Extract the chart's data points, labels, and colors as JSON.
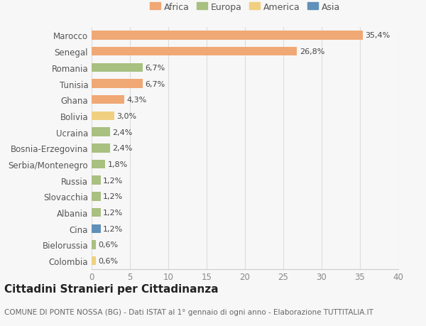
{
  "countries": [
    "Marocco",
    "Senegal",
    "Romania",
    "Tunisia",
    "Ghana",
    "Bolivia",
    "Ucraina",
    "Bosnia-Erzegovina",
    "Serbia/Montenegro",
    "Russia",
    "Slovacchia",
    "Albania",
    "Cina",
    "Bielorussia",
    "Colombia"
  ],
  "values": [
    35.4,
    26.8,
    6.7,
    6.7,
    4.3,
    3.0,
    2.4,
    2.4,
    1.8,
    1.2,
    1.2,
    1.2,
    1.2,
    0.6,
    0.6
  ],
  "labels": [
    "35,4%",
    "26,8%",
    "6,7%",
    "6,7%",
    "4,3%",
    "3,0%",
    "2,4%",
    "2,4%",
    "1,8%",
    "1,2%",
    "1,2%",
    "1,2%",
    "1,2%",
    "0,6%",
    "0,6%"
  ],
  "colors": [
    "#f0a875",
    "#f0a875",
    "#a8c080",
    "#f0a875",
    "#f0a875",
    "#f0d080",
    "#a8c080",
    "#a8c080",
    "#a8c080",
    "#a8c080",
    "#a8c080",
    "#a8c080",
    "#6090b8",
    "#a8c080",
    "#f0d080"
  ],
  "continent_labels": [
    "Africa",
    "Europa",
    "America",
    "Asia"
  ],
  "continent_colors": [
    "#f0a875",
    "#a8c080",
    "#f0d080",
    "#6090b8"
  ],
  "title": "Cittadini Stranieri per Cittadinanza",
  "subtitle": "COMUNE DI PONTE NOSSA (BG) - Dati ISTAT al 1° gennaio di ogni anno - Elaborazione TUTTITALIA.IT",
  "xlim": [
    0,
    40
  ],
  "xticks": [
    0,
    5,
    10,
    15,
    20,
    25,
    30,
    35,
    40
  ],
  "bg_color": "#f7f7f7",
  "bar_height": 0.55,
  "title_fontsize": 11,
  "subtitle_fontsize": 7.5,
  "label_fontsize": 8,
  "tick_fontsize": 8.5,
  "legend_fontsize": 9
}
